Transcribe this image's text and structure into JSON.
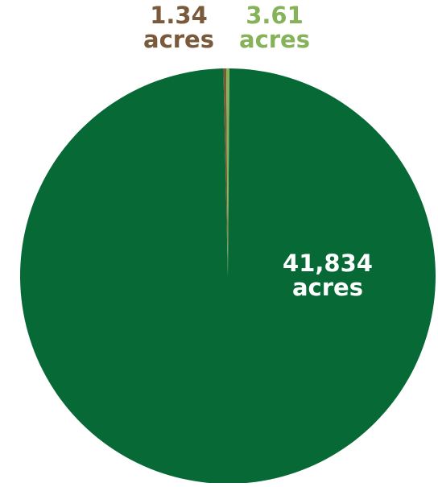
{
  "chart_data": {
    "type": "pie",
    "slices": [
      {
        "value": 1.34,
        "value_text": "1.34",
        "unit_text": "acres",
        "color": "#7a5a3a"
      },
      {
        "value": 3.61,
        "value_text": "3.61",
        "unit_text": "acres",
        "color": "#86b25a"
      },
      {
        "value": 41834,
        "value_text": "41,834",
        "unit_text": "acres",
        "color": "#076935",
        "label_color": "#ffffff"
      }
    ],
    "start_angle_deg": 0,
    "direction": "clockwise"
  }
}
